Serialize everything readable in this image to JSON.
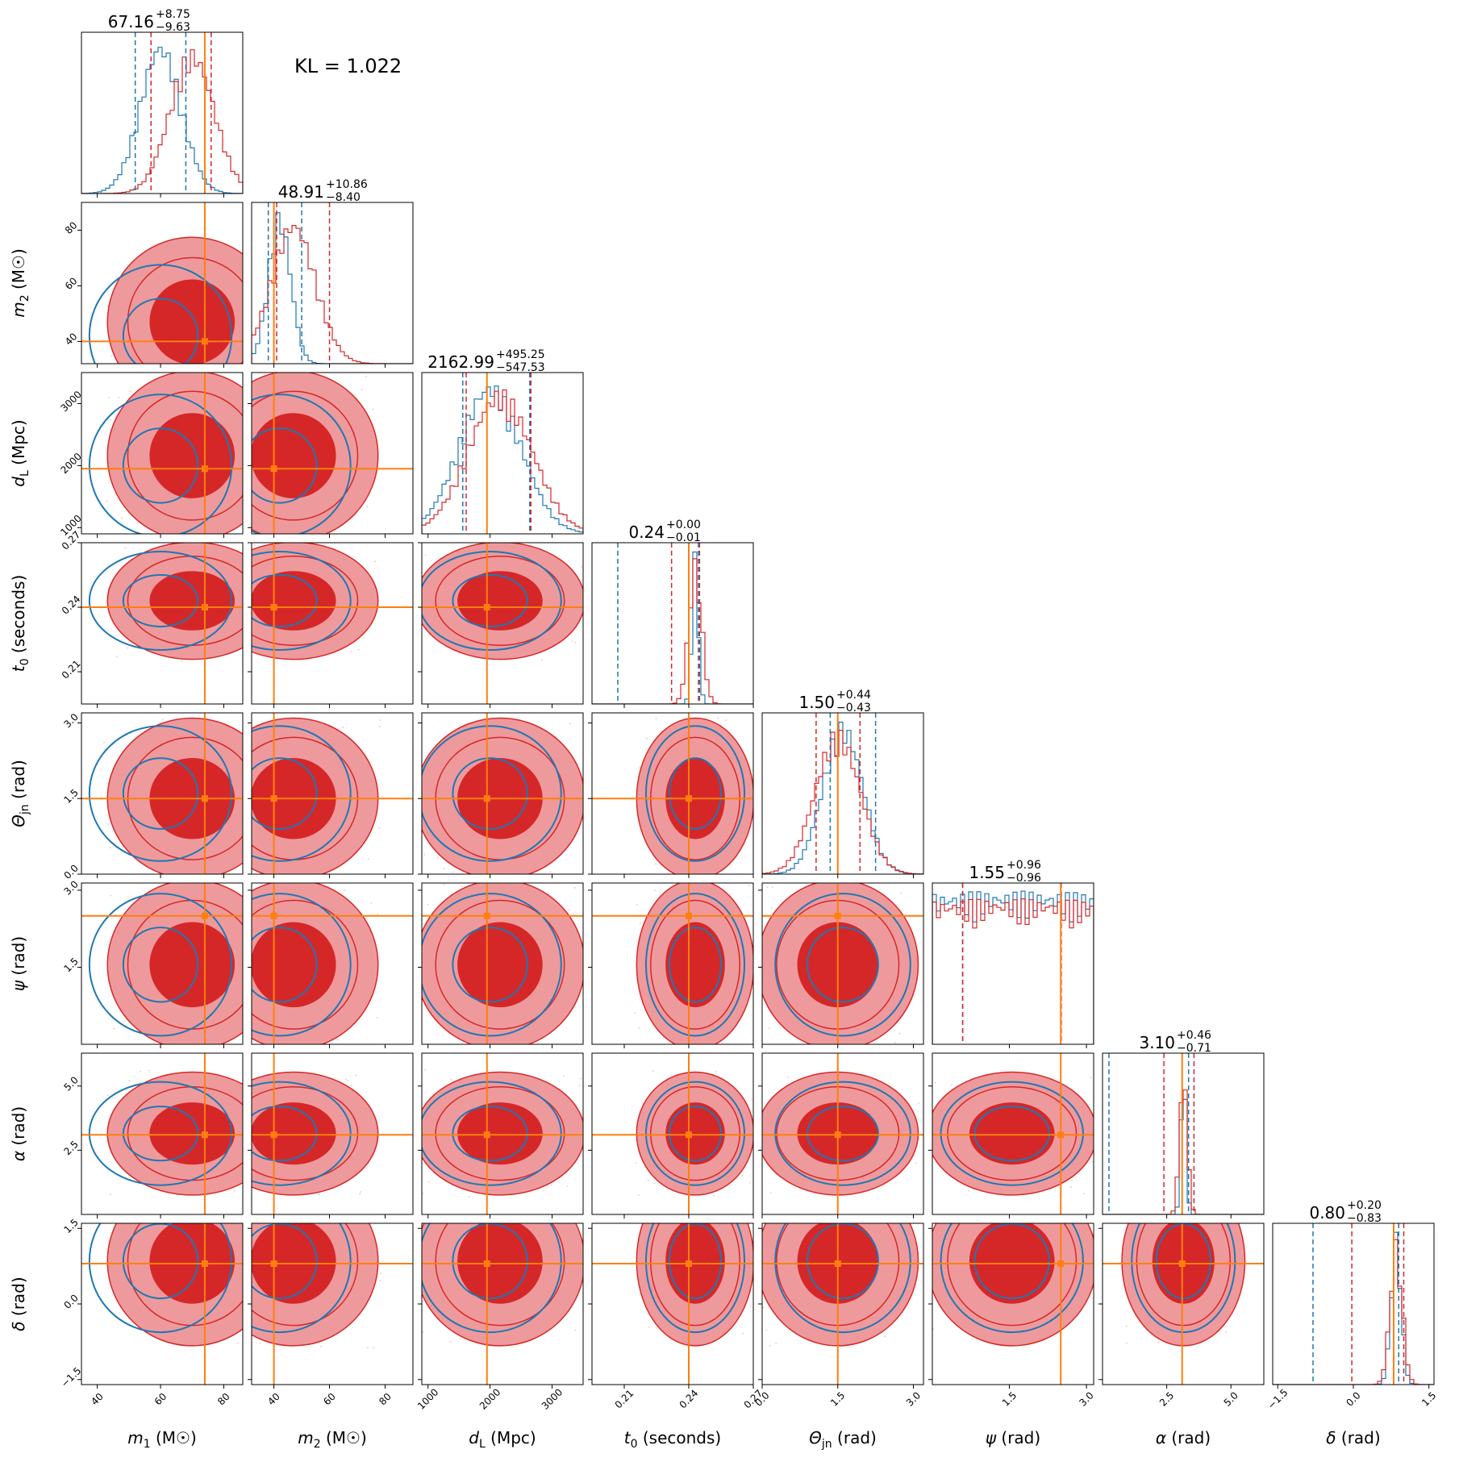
{
  "chart_data": {
    "type": "corner",
    "annotation": "KL = 1.022",
    "colors": {
      "blue": "#1f77b4",
      "red": "#d62728",
      "orange": "#ff7f0e",
      "red_fill_light": "#ee9a9c",
      "red_fill_dark": "#d62728"
    },
    "parameters": [
      {
        "key": "m1",
        "label_main": "m",
        "label_sub": "1",
        "label_unit": " (M☉)",
        "range": [
          35,
          86
        ],
        "ticks": [
          40,
          60,
          80
        ],
        "tick_labels": [
          "40",
          "60",
          "80"
        ],
        "truth": 74,
        "title_value": "67.16",
        "title_plus": "+8.75",
        "title_minus": "−9.63",
        "red_hist": {
          "center": 70,
          "sigma": 7,
          "lo": 57,
          "hi": 76
        },
        "blue_hist": {
          "center": 60,
          "sigma": 6.5,
          "lo": 52,
          "hi": 68
        }
      },
      {
        "key": "m2",
        "label_main": "m",
        "label_sub": "2",
        "label_unit": " (M☉)",
        "range": [
          32,
          90
        ],
        "ticks": [
          40,
          60,
          80
        ],
        "tick_labels": [
          "40",
          "60",
          "80"
        ],
        "truth": 40,
        "title_value": "48.91",
        "title_plus": "+10.86",
        "title_minus": "−8.40",
        "red_hist": {
          "center": 47,
          "sigma": 8,
          "lo": 41,
          "hi": 60
        },
        "blue_hist": {
          "center": 42,
          "sigma": 4,
          "lo": 38,
          "hi": 50
        }
      },
      {
        "key": "dL",
        "label_main": "d",
        "label_sub": "L",
        "label_unit": " (Mpc)",
        "range": [
          900,
          3500
        ],
        "ticks": [
          1000,
          2000,
          3000
        ],
        "tick_labels": [
          "1000",
          "2000",
          "3000"
        ],
        "truth": 1950,
        "title_value": "2162.99",
        "title_plus": "+495.25",
        "title_minus": "−547.53",
        "red_hist": {
          "center": 2160,
          "sigma": 520,
          "lo": 1615,
          "hi": 2658
        },
        "blue_hist": {
          "center": 2000,
          "sigma": 500,
          "lo": 1560,
          "hi": 2640
        }
      },
      {
        "key": "t0",
        "label_main": "t",
        "label_sub": "0",
        "label_unit": " (seconds)",
        "range": [
          0.195,
          0.27
        ],
        "ticks": [
          0.21,
          0.24,
          0.27
        ],
        "tick_labels": [
          "0.21",
          "0.24",
          "0.27"
        ],
        "truth": 0.24,
        "title_value": "0.24",
        "title_plus": "+0.00",
        "title_minus": "−0.01",
        "red_hist": {
          "center": 0.243,
          "sigma": 0.003,
          "lo": 0.232,
          "hi": 0.245
        },
        "blue_hist": {
          "center": 0.243,
          "sigma": 0.0015,
          "lo": 0.207,
          "hi": 0.2445
        }
      },
      {
        "key": "theta_jn",
        "label_main": "Θ",
        "label_sub": "jn",
        "label_unit": " (rad)",
        "range": [
          0,
          3.2
        ],
        "ticks": [
          0.0,
          1.5,
          3.0
        ],
        "tick_labels": [
          "0.0",
          "1.5",
          "3.0"
        ],
        "truth": 1.5,
        "title_value": "1.50",
        "title_plus": "+0.44",
        "title_minus": "−0.43",
        "red_hist": {
          "center": 1.5,
          "sigma": 0.45,
          "lo": 1.07,
          "hi": 1.94
        },
        "blue_hist": {
          "center": 1.6,
          "sigma": 0.4,
          "lo": 1.35,
          "hi": 2.25
        }
      },
      {
        "key": "psi",
        "label_main": "ψ",
        "label_sub": "",
        "label_unit": " (rad)",
        "range": [
          0,
          3.14
        ],
        "ticks": [
          1.5,
          3.0
        ],
        "tick_labels": [
          "1.5",
          "3.0"
        ],
        "truth": 2.5,
        "title_value": "1.55",
        "title_plus": "+0.96",
        "title_minus": "−0.96",
        "red_hist": {
          "center": 1.55,
          "sigma": 9,
          "lo": 0.59,
          "hi": 2.51
        },
        "blue_hist": {
          "center": 1.55,
          "sigma": 9,
          "lo": 0.59,
          "hi": 2.5
        }
      },
      {
        "key": "alpha",
        "label_main": "α",
        "label_sub": "",
        "label_unit": " (rad)",
        "range": [
          0,
          6.28
        ],
        "ticks": [
          2.5,
          5.0
        ],
        "tick_labels": [
          "2.5",
          "5.0"
        ],
        "truth": 3.1,
        "title_value": "3.10",
        "title_plus": "+0.46",
        "title_minus": "−0.71",
        "red_hist": {
          "center": 3.15,
          "sigma": 0.15,
          "lo": 2.39,
          "hi": 3.56
        },
        "blue_hist": {
          "center": 3.15,
          "sigma": 0.1,
          "lo": 0.25,
          "hi": 3.35
        }
      },
      {
        "key": "delta",
        "label_main": "δ",
        "label_sub": "",
        "label_unit": " (rad)",
        "range": [
          -1.6,
          1.6
        ],
        "ticks": [
          -1.5,
          0.0,
          1.5
        ],
        "tick_labels": [
          "−1.5",
          "0.0",
          "1.5"
        ],
        "truth": 0.8,
        "title_value": "0.80",
        "title_plus": "+0.20",
        "title_minus": "−0.83",
        "red_hist": {
          "center": 0.85,
          "sigma": 0.12,
          "lo": -0.03,
          "hi": 1.0
        },
        "blue_hist": {
          "center": 0.85,
          "sigma": 0.1,
          "lo": -0.8,
          "hi": 0.9
        }
      }
    ]
  }
}
